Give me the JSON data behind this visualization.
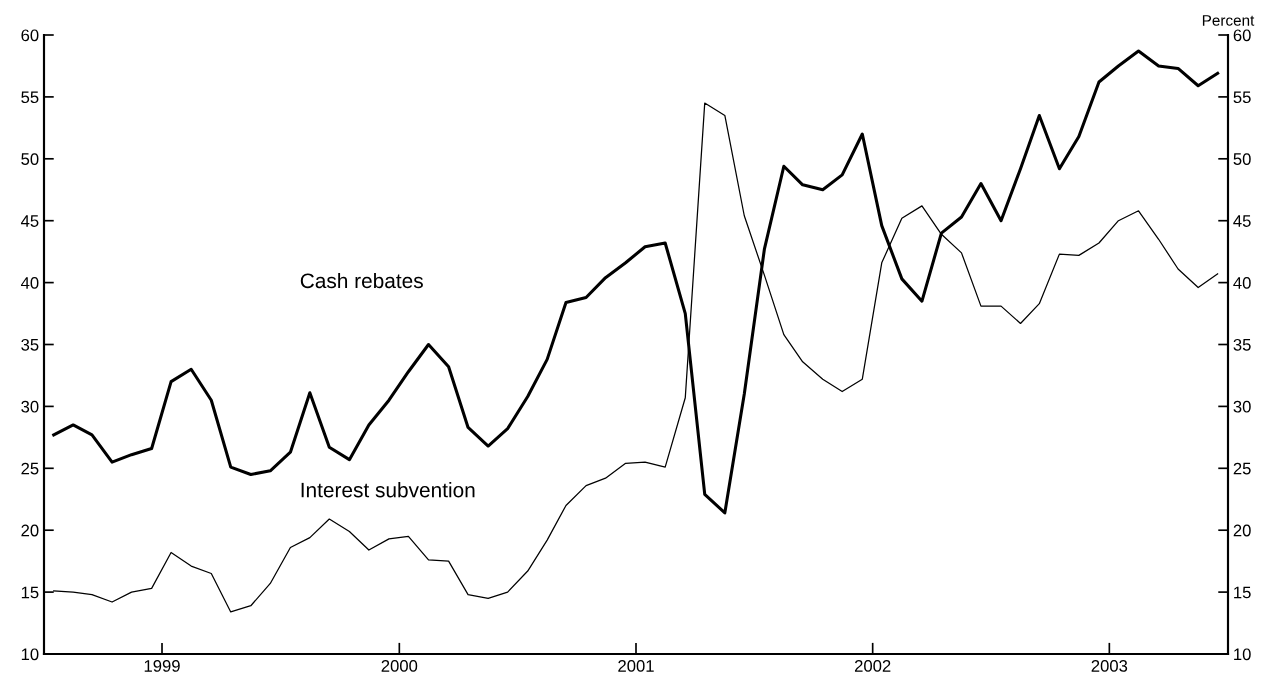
{
  "chart_data": {
    "type": "line",
    "y2label": "Percent",
    "x": [
      "1999-01-16",
      "1999-02-15",
      "1999-03-16",
      "1999-04-16",
      "1999-05-16",
      "1999-06-16",
      "1999-07-16",
      "1999-08-16",
      "1999-09-16",
      "1999-10-16",
      "1999-11-16",
      "1999-12-16",
      "2000-01-16",
      "2000-02-15",
      "2000-03-16",
      "2000-04-16",
      "2000-05-16",
      "2000-06-16",
      "2000-07-16",
      "2000-08-16",
      "2000-09-16",
      "2000-10-16",
      "2000-11-16",
      "2000-12-16",
      "2001-01-16",
      "2001-02-15",
      "2001-03-16",
      "2001-04-16",
      "2001-05-16",
      "2001-06-16",
      "2001-07-16",
      "2001-08-16",
      "2001-09-16",
      "2001-10-16",
      "2001-11-16",
      "2001-12-16",
      "2002-01-16",
      "2002-02-15",
      "2002-03-16",
      "2002-04-16",
      "2002-05-16",
      "2002-06-16",
      "2002-07-16",
      "2002-08-16",
      "2002-09-16",
      "2002-10-16",
      "2002-11-16",
      "2002-12-16",
      "2003-01-16",
      "2003-02-15",
      "2003-03-16",
      "2003-04-16",
      "2003-05-16",
      "2003-06-16",
      "2003-07-16",
      "2003-08-16",
      "2003-09-16",
      "2003-10-16",
      "2003-11-16",
      "2003-12-16"
    ],
    "series": [
      {
        "name": "Cash rebates",
        "color": "#000000",
        "values": [
          27.7,
          28.5,
          27.7,
          25.5,
          26.1,
          26.6,
          32.0,
          33.0,
          30.5,
          25.1,
          24.5,
          24.8,
          26.3,
          31.1,
          26.7,
          25.7,
          28.5,
          30.5,
          32.8,
          35.0,
          33.2,
          28.3,
          26.8,
          28.2,
          30.8,
          33.8,
          38.4,
          38.8,
          40.4,
          41.6,
          42.9,
          43.2,
          37.5,
          22.9,
          21.4,
          31.0,
          42.7,
          49.4,
          47.9,
          47.5,
          48.7,
          52.0,
          44.6,
          40.3,
          38.5,
          44.0,
          45.3,
          48.0,
          45.0,
          49.2,
          53.5,
          49.2,
          51.8,
          56.2,
          57.5,
          58.7,
          57.5,
          57.3,
          55.9,
          56.9
        ]
      },
      {
        "name": "Interest subvention",
        "color": "#000000",
        "values": [
          15.1,
          15.0,
          14.8,
          14.2,
          15.0,
          15.3,
          18.2,
          17.1,
          16.5,
          13.4,
          13.9,
          15.7,
          18.6,
          19.4,
          20.9,
          19.9,
          18.4,
          19.3,
          19.5,
          17.6,
          17.5,
          14.8,
          14.5,
          15.0,
          16.7,
          19.2,
          22.0,
          23.6,
          24.2,
          25.4,
          25.5,
          25.1,
          30.7,
          54.5,
          53.5,
          45.4,
          40.6,
          35.8,
          33.6,
          32.2,
          31.2,
          32.2,
          41.6,
          45.2,
          46.2,
          43.9,
          42.4,
          38.1,
          38.1,
          36.7,
          38.3,
          42.3,
          42.2,
          43.2,
          45.0,
          45.8,
          43.5,
          41.1,
          39.6,
          40.7
        ]
      }
    ],
    "xlim": [
      "1999-01-01",
      "2004-01-01"
    ],
    "xticks": [
      {
        "value": "1999-07-02",
        "label": "1999"
      },
      {
        "value": "2000-07-02",
        "label": "2000"
      },
      {
        "value": "2001-07-02",
        "label": "2001"
      },
      {
        "value": "2002-07-02",
        "label": "2002"
      },
      {
        "value": "2003-07-02",
        "label": "2003"
      }
    ],
    "ylim": [
      10,
      60
    ],
    "yticks": [
      10,
      15,
      20,
      25,
      30,
      35,
      40,
      45,
      50,
      55,
      60
    ],
    "y2lim": [
      10,
      60
    ],
    "y2ticks": [
      10,
      15,
      20,
      25,
      30,
      35,
      40,
      45,
      50,
      55,
      60
    ],
    "grid": false,
    "legend": false,
    "marker": "none",
    "line_style": "solid"
  }
}
